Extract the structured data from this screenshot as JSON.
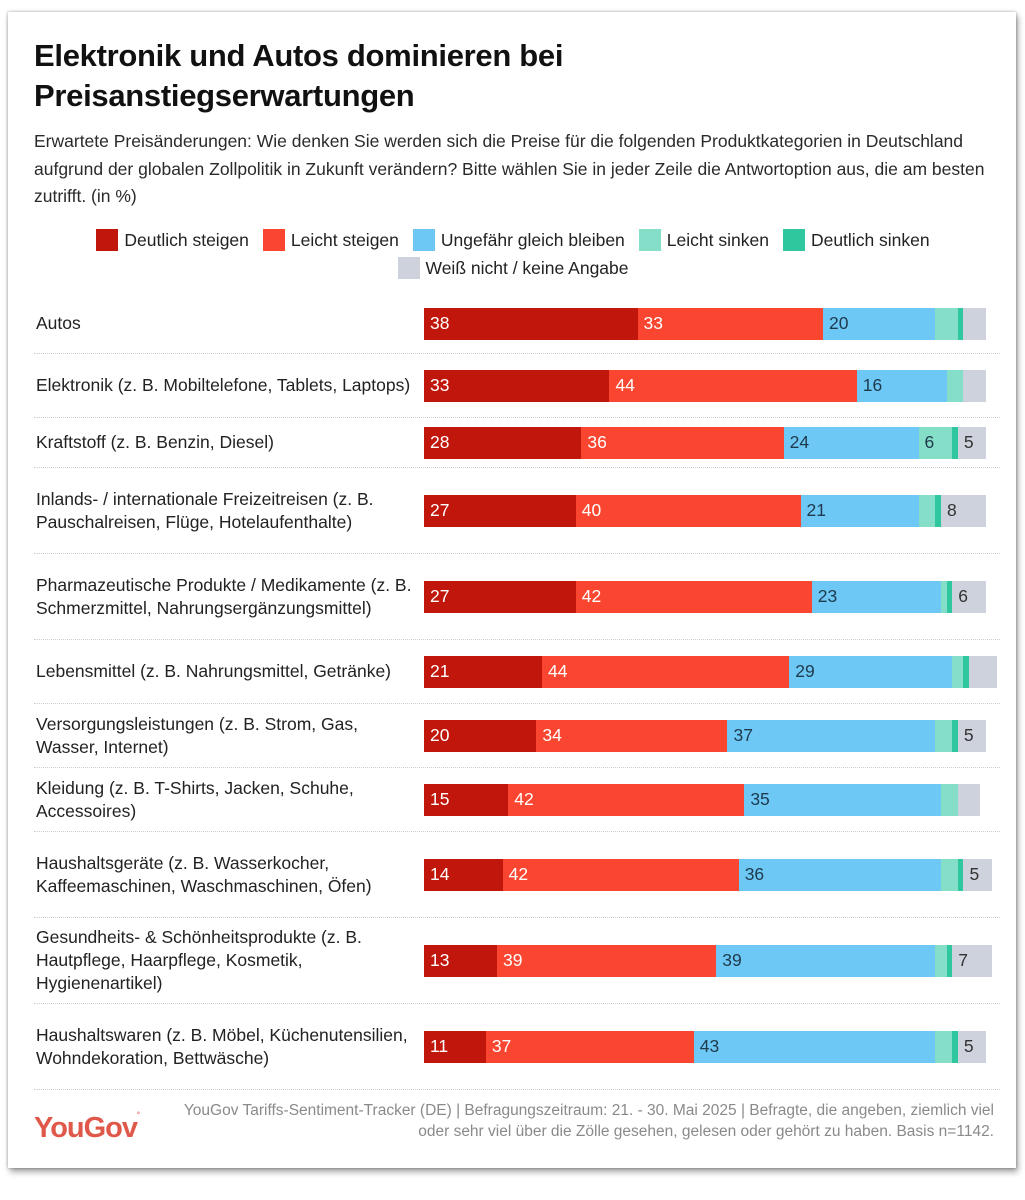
{
  "title": "Elektronik und Autos dominieren bei Preisanstiegserwartungen",
  "subtitle": "Erwartete Preisänderungen: Wie denken Sie werden sich die Preise für die folgenden Produktkategorien in Deutschland aufgrund der globalen Zollpolitik in Zukunft verändern? Bitte wählen Sie in jeder Zeile die Antwortoption aus, die am besten zutrifft. (in %)",
  "footer": {
    "logo": "YouGov",
    "note": "YouGov Tariffs-Sentiment-Tracker (DE) | Befragungszeitraum: 21. - 30. Mai 2025 | Befragte, die angeben, ziemlich viel oder sehr viel über die Zölle gesehen, gelesen oder gehört zu haben. Basis n=1142."
  },
  "chart_data": {
    "type": "bar",
    "orientation": "horizontal",
    "stacked": true,
    "unit": "%",
    "title": "Elektronik und Autos dominieren bei Preisanstiegserwartungen",
    "xlim": [
      0,
      100
    ],
    "legend_position": "top",
    "categories": [
      "Autos",
      "Elektronik (z. B. Mobiltelefone, Tablets, Laptops)",
      "Kraftstoff (z. B. Benzin, Diesel)",
      "Inlands- / internationale Freizeitreisen (z. B. Pauschalreisen, Flüge, Hotelaufenthalte)",
      "Pharmazeutische Produkte / Medikamente (z. B. Schmerzmittel, Nahrungsergänzungsmittel)",
      "Lebensmittel (z. B. Nahrungsmittel, Getränke)",
      "Versorgungsleistungen (z. B. Strom, Gas, Wasser, Internet)",
      "Kleidung (z. B. T-Shirts, Jacken, Schuhe, Accessoires)",
      "Haushaltsgeräte (z. B. Wasserkocher, Kaffeemaschinen, Waschmaschinen, Öfen)",
      "Gesundheits- & Schönheitsprodukte (z. B. Hautpflege, Haarpflege, Kosmetik, Hygienenartikel)",
      "Haushaltswaren (z. B. Möbel, Küchenutensilien, Wohndekoration, Bettwäsche)"
    ],
    "series": [
      {
        "name": "Deutlich steigen",
        "color": "#c0160b",
        "text_color": "#ffffff",
        "values": [
          38,
          33,
          28,
          27,
          27,
          21,
          20,
          15,
          14,
          13,
          11
        ],
        "labeled": [
          true,
          true,
          true,
          true,
          true,
          true,
          true,
          true,
          true,
          true,
          true
        ]
      },
      {
        "name": "Leicht steigen",
        "color": "#fa4630",
        "text_color": "#ffffff",
        "values": [
          33,
          44,
          36,
          40,
          42,
          44,
          34,
          42,
          42,
          39,
          37
        ],
        "labeled": [
          true,
          true,
          true,
          true,
          true,
          true,
          true,
          true,
          true,
          true,
          true
        ]
      },
      {
        "name": "Ungefähr gleich bleiben",
        "color": "#6ec8f6",
        "text_color": "#1e3a4c",
        "values": [
          20,
          16,
          24,
          21,
          23,
          29,
          37,
          35,
          36,
          39,
          43
        ],
        "labeled": [
          true,
          true,
          true,
          true,
          true,
          true,
          true,
          true,
          true,
          true,
          true
        ]
      },
      {
        "name": "Leicht sinken",
        "color": "#85dfc8",
        "text_color": "#1e3a4c",
        "values": [
          4,
          3,
          6,
          3,
          1,
          2,
          3,
          3,
          3,
          2,
          3
        ],
        "labeled": [
          false,
          false,
          true,
          false,
          false,
          false,
          false,
          false,
          false,
          false,
          false
        ]
      },
      {
        "name": "Deutlich sinken",
        "color": "#2fc79d",
        "text_color": "#1e3a4c",
        "values": [
          1,
          0,
          1,
          1,
          1,
          1,
          1,
          0,
          1,
          1,
          1
        ],
        "labeled": [
          false,
          false,
          false,
          false,
          false,
          false,
          false,
          false,
          false,
          false,
          false
        ]
      },
      {
        "name": "Weiß nicht / keine Angabe",
        "color": "#cdd2dc",
        "text_color": "#333333",
        "values": [
          4,
          4,
          5,
          8,
          6,
          5,
          5,
          4,
          5,
          7,
          5
        ],
        "labeled": [
          false,
          false,
          true,
          true,
          true,
          false,
          true,
          false,
          true,
          true,
          true
        ]
      }
    ]
  }
}
